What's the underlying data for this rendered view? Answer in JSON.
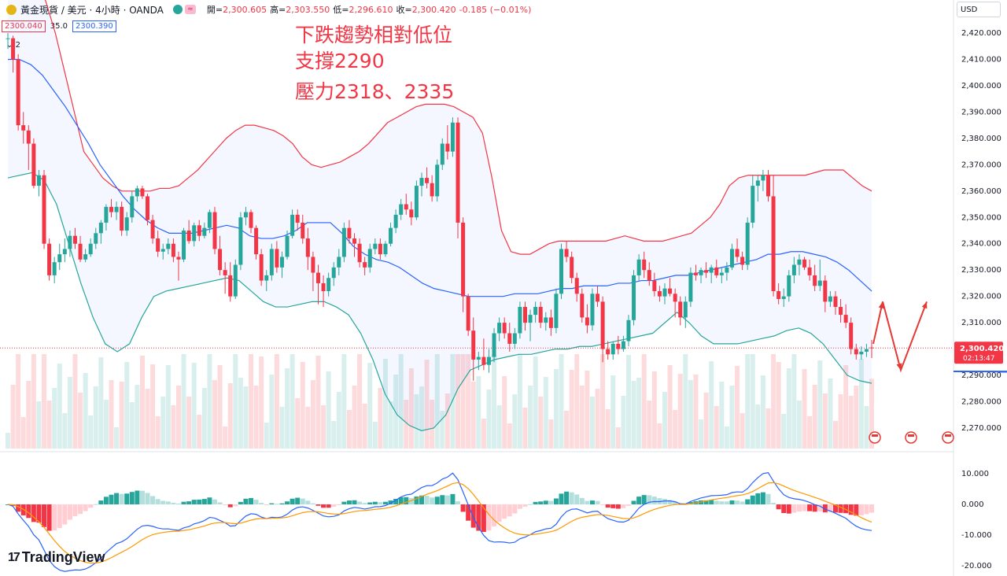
{
  "header": {
    "symbol": "黃金現貨 / 美元 · 4小時 · OANDA",
    "open_label": "開=",
    "open": "2,300.605",
    "high_label": "高=",
    "high": "2,303.550",
    "low_label": "低=",
    "low": "2,296.610",
    "close_label": "收=",
    "close": "2,300.420",
    "change": "-0.185 (−0.01%)",
    "pill_b": "≈",
    "currency": "USD"
  },
  "tags": {
    "sell": "2300.040",
    "spread": "35.0",
    "buy": "2300.390",
    "collapse": "2"
  },
  "annotation": {
    "line1": "下跌趨勢相對低位",
    "line2": "支撐2290",
    "line3": "壓力2318、2335"
  },
  "price_axis": [
    "2,420.000",
    "2,410.000",
    "2,400.000",
    "2,390.000",
    "2,380.000",
    "2,370.000",
    "2,360.000",
    "2,350.000",
    "2,340.000",
    "2,330.000",
    "2,320.000",
    "2,310.000",
    "2,300.000",
    "2,290.000",
    "2,280.000",
    "2,270.000"
  ],
  "macd_axis": [
    "10.000",
    "0.000",
    "-10.000",
    "-20.000"
  ],
  "last_price": {
    "value": "2,300.420",
    "countdown": "02:13:47"
  },
  "brand": "TradingView",
  "colors": {
    "up": "#26a69a",
    "down": "#f23645",
    "bb_upper": "#f23645",
    "bb_mid": "#2962ff",
    "bb_lower": "#26a69a",
    "trendline": "#2962ff",
    "macd": "#2962ff",
    "signal": "#ff9800"
  },
  "chart_data": {
    "type": "candlestick",
    "y_range": [
      2265,
      2425
    ],
    "macd_range": [
      -20,
      15
    ],
    "candles": [
      [
        2418,
        2420,
        2414,
        2418
      ],
      [
        2418,
        2419,
        2405,
        2410
      ],
      [
        2410,
        2412,
        2383,
        2385
      ],
      [
        2385,
        2390,
        2378,
        2383
      ],
      [
        2383,
        2385,
        2368,
        2378
      ],
      [
        2378,
        2380,
        2361,
        2362
      ],
      [
        2362,
        2368,
        2358,
        2366
      ],
      [
        2366,
        2368,
        2338,
        2340
      ],
      [
        2340,
        2342,
        2326,
        2328
      ],
      [
        2328,
        2335,
        2325,
        2333
      ],
      [
        2333,
        2340,
        2330,
        2336
      ],
      [
        2336,
        2342,
        2333,
        2338
      ],
      [
        2338,
        2345,
        2335,
        2343
      ],
      [
        2343,
        2346,
        2338,
        2340
      ],
      [
        2340,
        2343,
        2333,
        2334
      ],
      [
        2334,
        2338,
        2333,
        2336
      ],
      [
        2336,
        2342,
        2335,
        2340
      ],
      [
        2340,
        2346,
        2338,
        2344
      ],
      [
        2344,
        2349,
        2340,
        2348
      ],
      [
        2348,
        2355,
        2345,
        2354
      ],
      [
        2354,
        2357,
        2350,
        2352
      ],
      [
        2352,
        2356,
        2349,
        2354
      ],
      [
        2354,
        2356,
        2343,
        2345
      ],
      [
        2345,
        2352,
        2343,
        2350
      ],
      [
        2350,
        2360,
        2348,
        2358
      ],
      [
        2358,
        2362,
        2356,
        2361
      ],
      [
        2361,
        2362,
        2357,
        2358
      ],
      [
        2358,
        2359,
        2347,
        2349
      ],
      [
        2349,
        2351,
        2340,
        2342
      ],
      [
        2342,
        2345,
        2335,
        2337
      ],
      [
        2337,
        2340,
        2334,
        2338
      ],
      [
        2338,
        2342,
        2336,
        2340
      ],
      [
        2340,
        2342,
        2333,
        2335
      ],
      [
        2335,
        2337,
        2326,
        2334
      ],
      [
        2334,
        2346,
        2333,
        2345
      ],
      [
        2345,
        2349,
        2340,
        2341
      ],
      [
        2341,
        2348,
        2339,
        2347
      ],
      [
        2347,
        2349,
        2341,
        2343
      ],
      [
        2343,
        2348,
        2342,
        2346
      ],
      [
        2346,
        2353,
        2344,
        2352
      ],
      [
        2352,
        2354,
        2336,
        2338
      ],
      [
        2338,
        2343,
        2328,
        2330
      ],
      [
        2330,
        2333,
        2321,
        2328
      ],
      [
        2328,
        2333,
        2318,
        2320
      ],
      [
        2320,
        2334,
        2319,
        2332
      ],
      [
        2332,
        2352,
        2330,
        2350
      ],
      [
        2350,
        2354,
        2347,
        2352
      ],
      [
        2352,
        2353,
        2344,
        2346
      ],
      [
        2346,
        2347,
        2334,
        2336
      ],
      [
        2336,
        2338,
        2324,
        2326
      ],
      [
        2326,
        2330,
        2322,
        2328
      ],
      [
        2328,
        2340,
        2326,
        2338
      ],
      [
        2338,
        2341,
        2329,
        2331
      ],
      [
        2331,
        2337,
        2327,
        2335
      ],
      [
        2335,
        2345,
        2334,
        2343
      ],
      [
        2343,
        2353,
        2342,
        2351
      ],
      [
        2351,
        2353,
        2345,
        2348
      ],
      [
        2348,
        2351,
        2340,
        2342
      ],
      [
        2342,
        2346,
        2330,
        2335
      ],
      [
        2335,
        2337,
        2322,
        2329
      ],
      [
        2329,
        2332,
        2317,
        2325
      ],
      [
        2325,
        2328,
        2316,
        2322
      ],
      [
        2322,
        2329,
        2320,
        2327
      ],
      [
        2327,
        2333,
        2324,
        2331
      ],
      [
        2331,
        2338,
        2328,
        2335
      ],
      [
        2335,
        2348,
        2333,
        2346
      ],
      [
        2346,
        2349,
        2340,
        2342
      ],
      [
        2342,
        2344,
        2335,
        2340
      ],
      [
        2340,
        2342,
        2331,
        2333
      ],
      [
        2333,
        2335,
        2328,
        2331
      ],
      [
        2331,
        2340,
        2329,
        2338
      ],
      [
        2338,
        2342,
        2336,
        2340
      ],
      [
        2340,
        2342,
        2334,
        2336
      ],
      [
        2336,
        2341,
        2335,
        2340
      ],
      [
        2340,
        2348,
        2339,
        2346
      ],
      [
        2346,
        2353,
        2344,
        2351
      ],
      [
        2351,
        2357,
        2349,
        2355
      ],
      [
        2355,
        2359,
        2351,
        2353
      ],
      [
        2353,
        2356,
        2347,
        2350
      ],
      [
        2350,
        2364,
        2349,
        2362
      ],
      [
        2362,
        2367,
        2358,
        2365
      ],
      [
        2365,
        2369,
        2361,
        2363
      ],
      [
        2363,
        2366,
        2356,
        2358
      ],
      [
        2358,
        2372,
        2356,
        2370
      ],
      [
        2370,
        2380,
        2368,
        2378
      ],
      [
        2378,
        2385,
        2372,
        2375
      ],
      [
        2375,
        2388,
        2373,
        2386
      ],
      [
        2386,
        2388,
        2342,
        2348
      ],
      [
        2348,
        2350,
        2314,
        2320
      ],
      [
        2320,
        2321,
        2305,
        2307
      ],
      [
        2307,
        2312,
        2288,
        2296
      ],
      [
        2296,
        2299,
        2292,
        2297
      ],
      [
        2297,
        2304,
        2292,
        2294
      ],
      [
        2294,
        2300,
        2291,
        2297
      ],
      [
        2297,
        2308,
        2295,
        2306
      ],
      [
        2306,
        2312,
        2303,
        2310
      ],
      [
        2310,
        2312,
        2304,
        2306
      ],
      [
        2306,
        2310,
        2299,
        2302
      ],
      [
        2302,
        2308,
        2300,
        2306
      ],
      [
        2306,
        2318,
        2304,
        2316
      ],
      [
        2316,
        2318,
        2307,
        2310
      ],
      [
        2310,
        2315,
        2303,
        2313
      ],
      [
        2313,
        2318,
        2310,
        2316
      ],
      [
        2316,
        2318,
        2308,
        2310
      ],
      [
        2310,
        2314,
        2307,
        2312
      ],
      [
        2312,
        2315,
        2305,
        2308
      ],
      [
        2308,
        2323,
        2306,
        2321
      ],
      [
        2321,
        2340,
        2319,
        2338
      ],
      [
        2338,
        2341,
        2333,
        2335
      ],
      [
        2335,
        2337,
        2325,
        2327
      ],
      [
        2327,
        2329,
        2318,
        2321
      ],
      [
        2321,
        2323,
        2310,
        2312
      ],
      [
        2312,
        2317,
        2306,
        2309
      ],
      [
        2309,
        2323,
        2307,
        2321
      ],
      [
        2321,
        2324,
        2316,
        2318
      ],
      [
        2318,
        2320,
        2295,
        2300
      ],
      [
        2300,
        2303,
        2296,
        2298
      ],
      [
        2298,
        2303,
        2296,
        2302
      ],
      [
        2302,
        2305,
        2298,
        2300
      ],
      [
        2300,
        2305,
        2299,
        2303
      ],
      [
        2303,
        2313,
        2301,
        2311
      ],
      [
        2311,
        2330,
        2309,
        2328
      ],
      [
        2328,
        2336,
        2326,
        2334
      ],
      [
        2334,
        2337,
        2327,
        2330
      ],
      [
        2330,
        2333,
        2324,
        2326
      ],
      [
        2326,
        2329,
        2320,
        2322
      ],
      [
        2322,
        2324,
        2318,
        2320
      ],
      [
        2320,
        2325,
        2317,
        2323
      ],
      [
        2323,
        2327,
        2320,
        2321
      ],
      [
        2321,
        2323,
        2312,
        2318
      ],
      [
        2318,
        2320,
        2309,
        2312
      ],
      [
        2312,
        2320,
        2308,
        2318
      ],
      [
        2318,
        2331,
        2316,
        2329
      ],
      [
        2329,
        2332,
        2326,
        2328
      ],
      [
        2328,
        2331,
        2325,
        2330
      ],
      [
        2330,
        2333,
        2327,
        2329
      ],
      [
        2329,
        2332,
        2325,
        2331
      ],
      [
        2331,
        2334,
        2327,
        2328
      ],
      [
        2328,
        2331,
        2325,
        2329
      ],
      [
        2329,
        2333,
        2326,
        2331
      ],
      [
        2331,
        2340,
        2330,
        2338
      ],
      [
        2338,
        2342,
        2333,
        2335
      ],
      [
        2335,
        2337,
        2330,
        2332
      ],
      [
        2332,
        2350,
        2330,
        2348
      ],
      [
        2348,
        2366,
        2346,
        2362
      ],
      [
        2362,
        2366,
        2356,
        2364
      ],
      [
        2364,
        2368,
        2360,
        2366
      ],
      [
        2366,
        2368,
        2356,
        2358
      ],
      [
        2358,
        2366,
        2320,
        2322
      ],
      [
        2322,
        2325,
        2317,
        2319
      ],
      [
        2319,
        2323,
        2316,
        2320
      ],
      [
        2320,
        2330,
        2318,
        2328
      ],
      [
        2328,
        2335,
        2325,
        2332
      ],
      [
        2332,
        2336,
        2328,
        2334
      ],
      [
        2334,
        2335,
        2330,
        2331
      ],
      [
        2331,
        2334,
        2326,
        2328
      ],
      [
        2328,
        2332,
        2322,
        2324
      ],
      [
        2324,
        2334,
        2322,
        2326
      ],
      [
        2326,
        2328,
        2314,
        2318
      ],
      [
        2318,
        2322,
        2316,
        2320
      ],
      [
        2320,
        2322,
        2313,
        2316
      ],
      [
        2316,
        2319,
        2310,
        2313
      ],
      [
        2313,
        2317,
        2308,
        2310
      ],
      [
        2310,
        2312,
        2298,
        2300
      ],
      [
        2300,
        2302,
        2296,
        2298
      ],
      [
        2298,
        2301,
        2296,
        2299
      ],
      [
        2299,
        2302,
        2297,
        2300
      ],
      [
        2300.6,
        2303.5,
        2296.6,
        2300.4
      ]
    ],
    "bb_upper": [
      2456,
      2452,
      2448,
      2440,
      2432,
      2420,
      2405,
      2390,
      2375,
      2370,
      2365,
      2362,
      2360,
      2360,
      2360,
      2360,
      2361,
      2361,
      2362,
      2365,
      2368,
      2372,
      2376,
      2380,
      2383,
      2385,
      2385,
      2384,
      2383,
      2381,
      2378,
      2373,
      2370,
      2369,
      2370,
      2371,
      2373,
      2375,
      2378,
      2382,
      2386,
      2388,
      2390,
      2392,
      2393,
      2393,
      2393,
      2392,
      2390,
      2388,
      2382,
      2365,
      2345,
      2337,
      2336,
      2336,
      2338,
      2340,
      2341,
      2341,
      2341,
      2341,
      2341,
      2341,
      2342,
      2343,
      2342,
      2341,
      2341,
      2341,
      2342,
      2343,
      2344,
      2347,
      2350,
      2355,
      2362,
      2365,
      2366,
      2366,
      2366,
      2366,
      2366,
      2366,
      2366,
      2367,
      2368,
      2368,
      2368,
      2365,
      2362,
      2360
    ],
    "bb_mid": [
      2410,
      2410,
      2408,
      2404,
      2398,
      2392,
      2385,
      2378,
      2370,
      2364,
      2358,
      2353,
      2349,
      2346,
      2344,
      2344,
      2344,
      2345,
      2346,
      2347,
      2346,
      2343,
      2342,
      2342,
      2343,
      2345,
      2348,
      2348,
      2348,
      2344,
      2339,
      2336,
      2334,
      2333,
      2331,
      2328,
      2325,
      2323,
      2322,
      2321,
      2320,
      2320,
      2320,
      2320,
      2321,
      2321,
      2321,
      2322,
      2323,
      2323,
      2324,
      2324,
      2324,
      2325,
      2325,
      2326,
      2326,
      2327,
      2328,
      2328,
      2329,
      2330,
      2331,
      2332,
      2333,
      2334,
      2336,
      2336,
      2337,
      2337,
      2336,
      2335,
      2333,
      2330,
      2326,
      2322
    ],
    "bb_lower": [
      2365,
      2366,
      2367,
      2364,
      2355,
      2340,
      2325,
      2312,
      2302,
      2299,
      2302,
      2312,
      2320,
      2322,
      2323,
      2324,
      2325,
      2326,
      2327,
      2326,
      2322,
      2318,
      2316,
      2316,
      2317,
      2318,
      2318,
      2316,
      2313,
      2306,
      2296,
      2283,
      2275,
      2271,
      2269,
      2270,
      2275,
      2285,
      2292,
      2294,
      2296,
      2297,
      2298,
      2298,
      2299,
      2300,
      2300,
      2301,
      2301,
      2302,
      2303,
      2304,
      2305,
      2306,
      2310,
      2314,
      2310,
      2305,
      2302,
      2302,
      2302,
      2303,
      2304,
      2305,
      2307,
      2308,
      2306,
      2302,
      2296,
      2290,
      2288,
      2287
    ],
    "trendline": [
      [
        2283,
        2291
      ],
      [
        1212,
        2291.5
      ]
    ],
    "arrows": [
      [
        2302,
        2318
      ],
      [
        2318,
        2292
      ],
      [
        2292,
        2318
      ]
    ],
    "volume_max": 100
  }
}
